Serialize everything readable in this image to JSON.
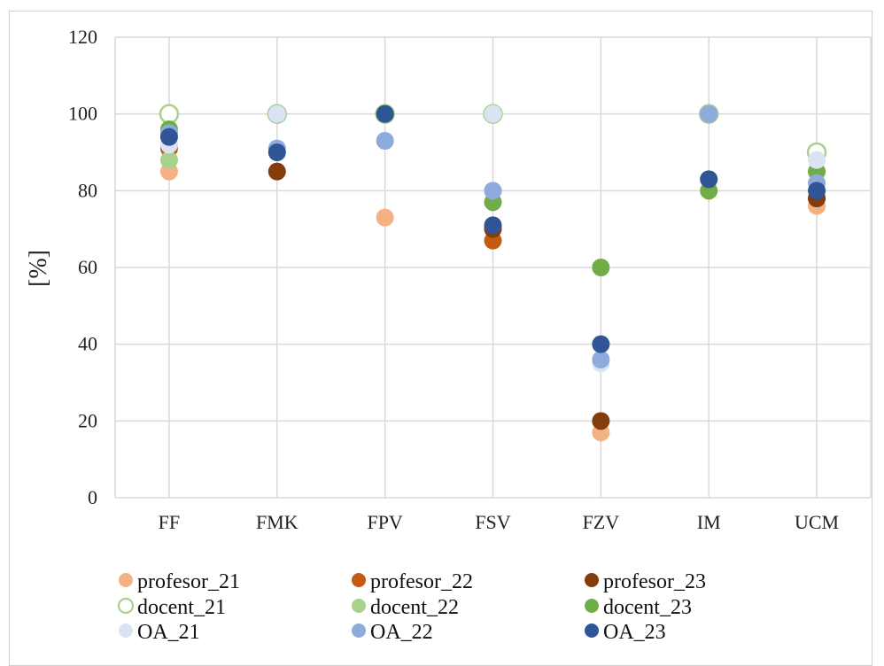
{
  "chart_data": {
    "type": "scatter",
    "categories": [
      "FF",
      "FMK",
      "FPV",
      "FSV",
      "FZV",
      "IM",
      "UCM"
    ],
    "ylabel": "[%]",
    "ylim": [
      0,
      120
    ],
    "yticks": [
      0,
      20,
      40,
      60,
      80,
      100,
      120
    ],
    "grid": true,
    "legend_position": "bottom",
    "series": [
      {
        "name": "profesor_21",
        "color": "#f4b183",
        "fill": "solid",
        "values": [
          85,
          null,
          73,
          null,
          17,
          null,
          76
        ]
      },
      {
        "name": "profesor_22",
        "color": "#c55a11",
        "fill": "solid",
        "values": [
          91,
          null,
          null,
          67,
          null,
          null,
          78
        ]
      },
      {
        "name": "profesor_23",
        "color": "#843c0c",
        "fill": "solid",
        "values": [
          null,
          85,
          null,
          70,
          20,
          null,
          78
        ]
      },
      {
        "name": "docent_21",
        "color": "#a9d18e",
        "fill": "outline",
        "values": [
          100,
          100,
          100,
          100,
          null,
          100,
          90
        ]
      },
      {
        "name": "docent_22",
        "color": "#a9d18e",
        "fill": "solid",
        "values": [
          88,
          100,
          100,
          80,
          40,
          83,
          85
        ]
      },
      {
        "name": "docent_23",
        "color": "#70ad47",
        "fill": "solid",
        "values": [
          96,
          100,
          100,
          77,
          60,
          80,
          85
        ]
      },
      {
        "name": "OA_21",
        "color": "#dae3f3",
        "fill": "solid",
        "values": [
          92,
          100,
          null,
          100,
          35,
          100,
          88
        ]
      },
      {
        "name": "OA_22",
        "color": "#8faadc",
        "fill": "solid",
        "values": [
          95,
          91,
          93,
          80,
          36,
          100,
          82
        ]
      },
      {
        "name": "OA_23",
        "color": "#2f5597",
        "fill": "solid",
        "values": [
          94,
          90,
          100,
          71,
          40,
          83,
          80
        ]
      }
    ]
  }
}
